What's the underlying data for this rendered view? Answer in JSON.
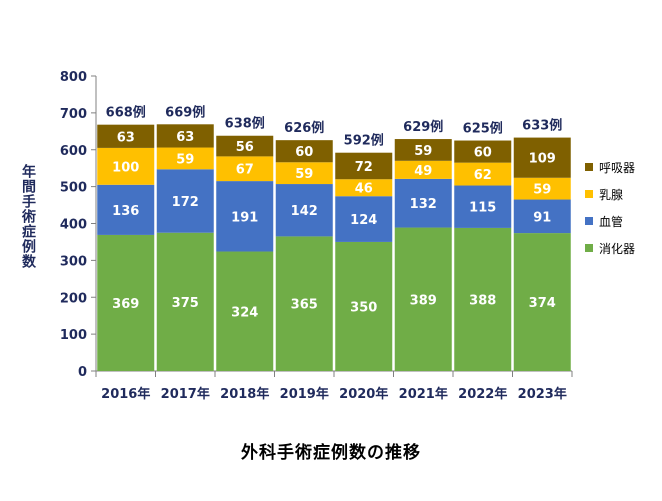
{
  "chart_data": {
    "type": "bar",
    "stacked": true,
    "title": "外科手術症例数の推移",
    "xlabel": "",
    "ylabel": "年間手術症例数",
    "ylim": [
      0,
      800
    ],
    "yticks": [
      0,
      100,
      200,
      300,
      400,
      500,
      600,
      700,
      800
    ],
    "categories": [
      "2016年",
      "2017年",
      "2018年",
      "2019年",
      "2020年",
      "2021年",
      "2022年",
      "2023年"
    ],
    "series": [
      {
        "name": "消化器",
        "color": "#70ad47",
        "values": [
          369,
          375,
          324,
          365,
          350,
          389,
          388,
          374
        ]
      },
      {
        "name": "血管",
        "color": "#4472c4",
        "values": [
          136,
          172,
          191,
          142,
          124,
          132,
          115,
          91
        ]
      },
      {
        "name": "乳腺",
        "color": "#ffc000",
        "values": [
          100,
          59,
          67,
          59,
          46,
          49,
          62,
          59
        ]
      },
      {
        "name": "呼吸器",
        "color": "#7f6000",
        "values": [
          63,
          63,
          56,
          60,
          72,
          59,
          60,
          109
        ]
      }
    ],
    "totals": [
      "668例",
      "669例",
      "638例",
      "626例",
      "592例",
      "629例",
      "625例",
      "633例"
    ],
    "legend_position": "right",
    "grid": false
  }
}
